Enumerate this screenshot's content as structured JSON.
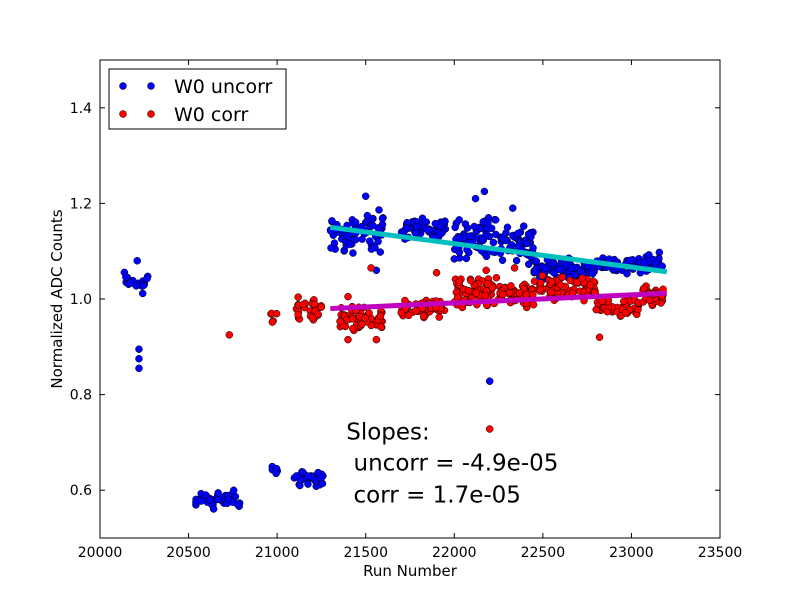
{
  "chart_data": {
    "type": "scatter",
    "title": "",
    "xlabel": "Run Number",
    "ylabel": "Normalized ADC Counts",
    "xlim": [
      20000,
      23500
    ],
    "ylim": [
      0.5,
      1.5
    ],
    "xticks": [
      "20000",
      "20500",
      "21000",
      "21500",
      "22000",
      "22500",
      "23000",
      "23500"
    ],
    "yticks": [
      "0.6",
      "0.8",
      "1.0",
      "1.2",
      "1.4"
    ],
    "grid": false,
    "legend_position": "top-left",
    "series": [
      {
        "name": "W0 uncorr",
        "color": "#0000ff",
        "clusters": [
          {
            "x": [
              20110,
              20270
            ],
            "y": [
              1.0,
              1.07
            ],
            "n": 18
          },
          {
            "x": [
              20540,
              20800
            ],
            "y": [
              0.555,
              0.605
            ],
            "n": 40
          },
          {
            "x": [
              20960,
              21010
            ],
            "y": [
              0.63,
              0.655
            ],
            "n": 6
          },
          {
            "x": [
              21090,
              21260
            ],
            "y": [
              0.605,
              0.645
            ],
            "n": 30
          },
          {
            "x": [
              21300,
              21600
            ],
            "y": [
              1.09,
              1.19
            ],
            "n": 70
          },
          {
            "x": [
              21700,
              21950
            ],
            "y": [
              1.12,
              1.17
            ],
            "n": 60
          },
          {
            "x": [
              22000,
              22250
            ],
            "y": [
              1.08,
              1.18
            ],
            "n": 70
          },
          {
            "x": [
              22250,
              22450
            ],
            "y": [
              1.07,
              1.16
            ],
            "n": 50
          },
          {
            "x": [
              22450,
              22800
            ],
            "y": [
              1.04,
              1.09
            ],
            "n": 80
          },
          {
            "x": [
              22800,
              23050
            ],
            "y": [
              1.05,
              1.09
            ],
            "n": 50
          },
          {
            "x": [
              23050,
              23180
            ],
            "y": [
              1.05,
              1.1
            ],
            "n": 30
          }
        ],
        "extra_points": [
          {
            "x": 20220,
            "y": 0.895
          },
          {
            "x": 20220,
            "y": 0.875
          },
          {
            "x": 20220,
            "y": 0.855
          },
          {
            "x": 20210,
            "y": 1.08
          },
          {
            "x": 21500,
            "y": 1.215
          },
          {
            "x": 21330,
            "y": 1.145
          },
          {
            "x": 21560,
            "y": 1.06
          },
          {
            "x": 22120,
            "y": 1.21
          },
          {
            "x": 22170,
            "y": 1.225
          },
          {
            "x": 22330,
            "y": 1.19
          },
          {
            "x": 22200,
            "y": 0.828
          }
        ],
        "fit": {
          "x": [
            21300,
            23200
          ],
          "y": [
            1.15,
            1.057
          ],
          "color": "#00bfbf"
        }
      },
      {
        "name": "W0 corr",
        "color": "#ff0000",
        "clusters": [
          {
            "x": [
              20960,
              21000
            ],
            "y": [
              0.95,
              0.98
            ],
            "n": 5
          },
          {
            "x": [
              21100,
              21250
            ],
            "y": [
              0.95,
              1.01
            ],
            "n": 30
          },
          {
            "x": [
              21350,
              21600
            ],
            "y": [
              0.93,
              0.99
            ],
            "n": 60
          },
          {
            "x": [
              21700,
              21950
            ],
            "y": [
              0.96,
              1.0
            ],
            "n": 60
          },
          {
            "x": [
              22000,
              22250
            ],
            "y": [
              0.98,
              1.05
            ],
            "n": 70
          },
          {
            "x": [
              22250,
              22450
            ],
            "y": [
              0.98,
              1.04
            ],
            "n": 50
          },
          {
            "x": [
              22450,
              22800
            ],
            "y": [
              0.99,
              1.05
            ],
            "n": 80
          },
          {
            "x": [
              22800,
              23050
            ],
            "y": [
              0.96,
              1.0
            ],
            "n": 50
          },
          {
            "x": [
              23050,
              23180
            ],
            "y": [
              0.98,
              1.03
            ],
            "n": 30
          }
        ],
        "extra_points": [
          {
            "x": 20730,
            "y": 0.925
          },
          {
            "x": 21400,
            "y": 1.005
          },
          {
            "x": 21400,
            "y": 0.915
          },
          {
            "x": 21560,
            "y": 0.915
          },
          {
            "x": 21530,
            "y": 1.065
          },
          {
            "x": 21900,
            "y": 1.055
          },
          {
            "x": 22200,
            "y": 0.728
          },
          {
            "x": 22180,
            "y": 1.06
          },
          {
            "x": 22340,
            "y": 1.065
          },
          {
            "x": 22820,
            "y": 0.92
          }
        ],
        "fit": {
          "x": [
            21300,
            23200
          ],
          "y": [
            0.98,
            1.012
          ],
          "color": "#bf00bf"
        }
      }
    ],
    "annotation": {
      "title": "Slopes:",
      "line1": " uncorr = -4.9e-05",
      "line2": " corr = 1.7e-05",
      "x": 21390,
      "y": 0.645
    }
  }
}
